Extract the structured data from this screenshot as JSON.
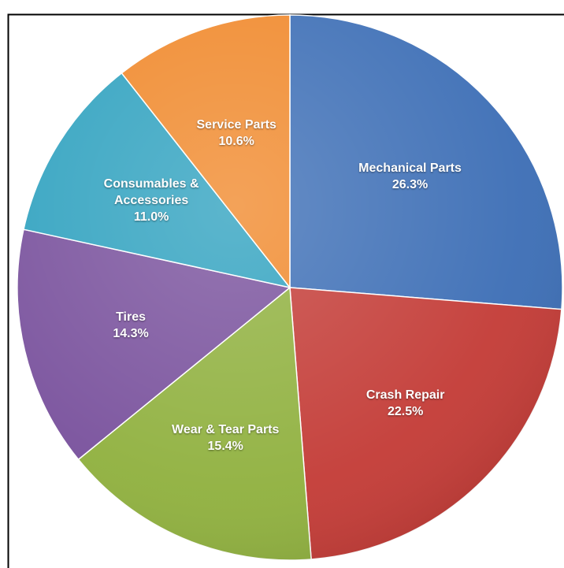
{
  "chart_data": {
    "type": "pie",
    "categories": [
      "Mechanical Parts",
      "Crash Repair",
      "Wear & Tear Parts",
      "Tires",
      "Consumables & Accessories",
      "Service Parts"
    ],
    "values": [
      26.3,
      22.5,
      15.4,
      14.3,
      11.0,
      10.6
    ],
    "value_labels": [
      "26.3%",
      "22.5%",
      "15.4%",
      "14.3%",
      "11.0%",
      "10.6%"
    ],
    "colors": [
      "#3b6db5",
      "#c33a35",
      "#8fb03d",
      "#78509c",
      "#2ea1bf",
      "#f0882a"
    ]
  }
}
